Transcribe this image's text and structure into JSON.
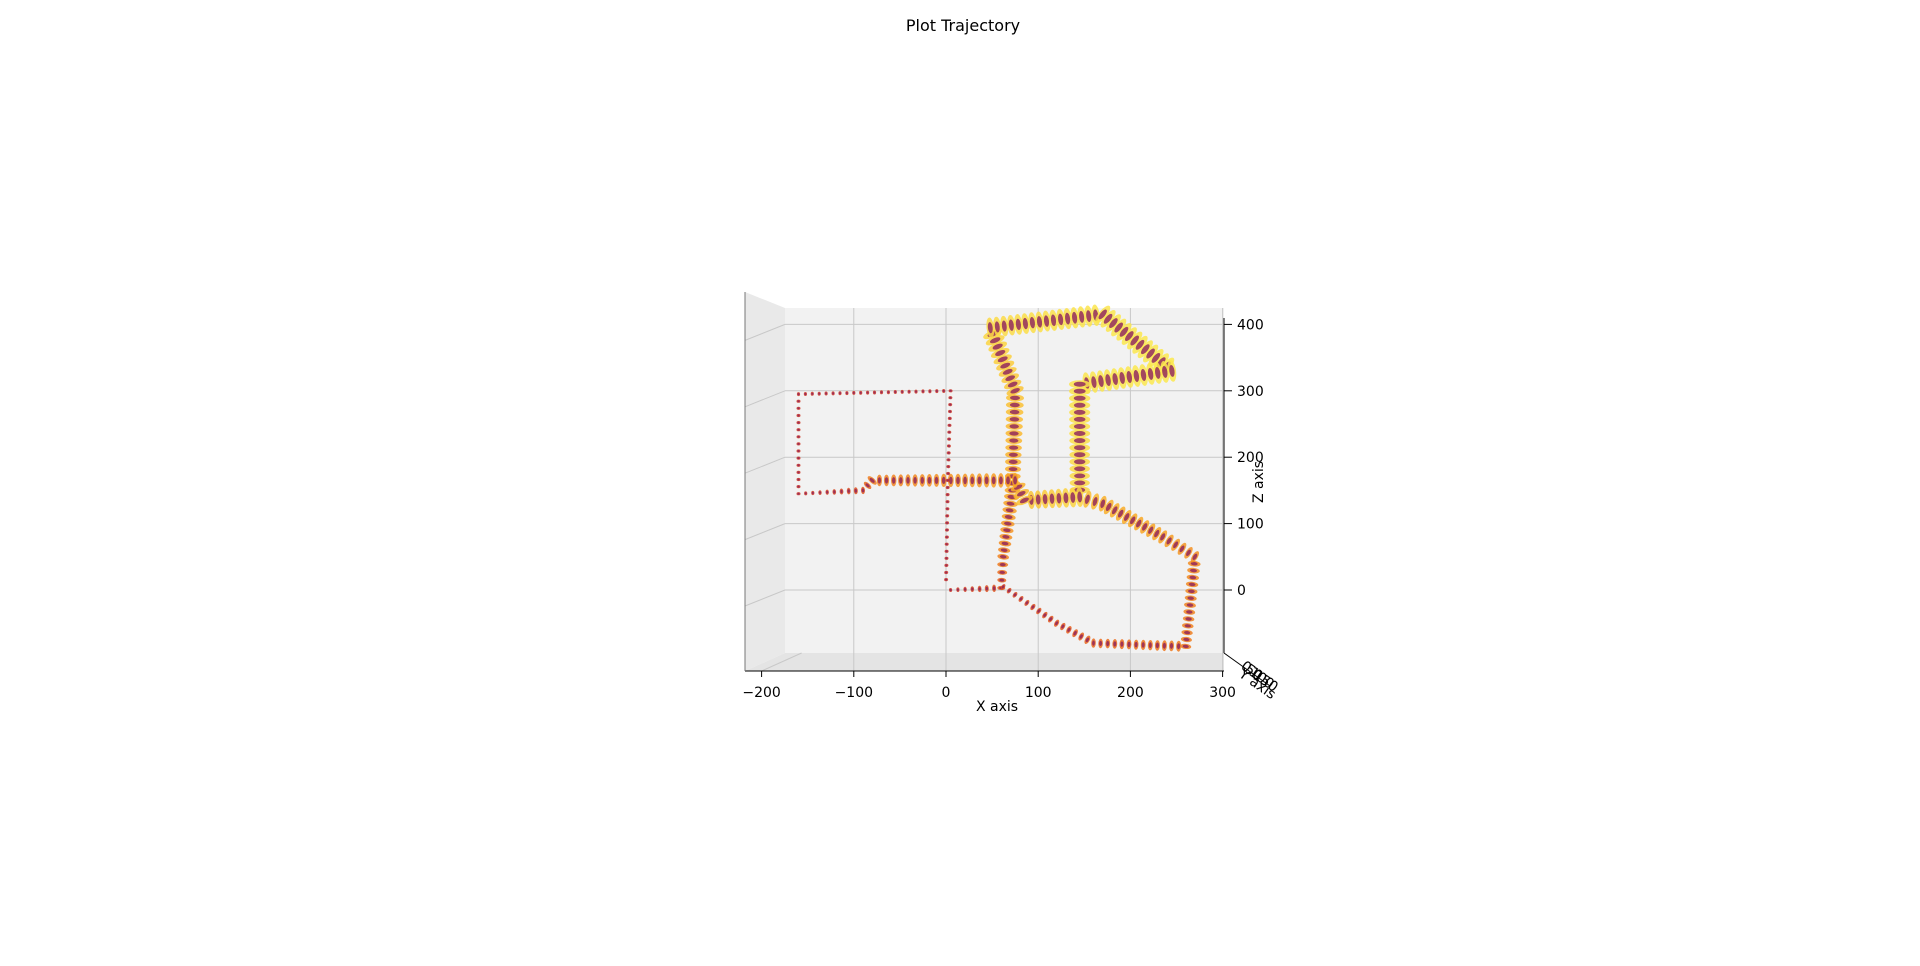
{
  "chart_data": {
    "type": "scatter",
    "title": "Plot Trajectory",
    "xlabel": "X axis",
    "ylabel": "Y axis",
    "zlabel": "Z axis",
    "xlim": [
      -210,
      310
    ],
    "zlim": [
      -95,
      420
    ],
    "x_ticks": [
      "−200",
      "−100",
      "0",
      "100",
      "200",
      "300"
    ],
    "x_tick_values": [
      -200,
      -100,
      0,
      100,
      200,
      300
    ],
    "z_ticks": [
      "0",
      "100",
      "200",
      "300",
      "400"
    ],
    "z_tick_values": [
      0,
      100,
      200,
      300,
      400
    ],
    "y_ticks": [
      "0",
      "50",
      "100",
      "150"
    ],
    "colormap": [
      "#1a0a4a",
      "#7a1d6c",
      "#c0282d",
      "#e8601c",
      "#f9a825",
      "#fce94f"
    ],
    "pane_color": "#f2f2f2",
    "grid": true,
    "series": [
      {
        "points": [
          [
            5,
            0
          ],
          [
            60,
            3
          ],
          [
            62,
            50
          ],
          [
            72,
            150
          ],
          [
            75,
            300
          ],
          [
            48,
            395
          ],
          [
            170,
            415
          ],
          [
            245,
            330
          ],
          [
            145,
            310
          ],
          [
            145,
            140
          ],
          [
            85,
            135
          ],
          [
            75,
            165
          ],
          [
            -80,
            165
          ],
          [
            -90,
            150
          ],
          [
            -160,
            145
          ],
          [
            -160,
            295
          ],
          [
            5,
            300
          ],
          [
            2,
            165
          ],
          [
            0,
            5
          ]
        ]
      },
      {
        "points": [
          [
            62,
            5
          ],
          [
            120,
            -50
          ],
          [
            160,
            -80
          ],
          [
            260,
            -85
          ],
          [
            270,
            50
          ],
          [
            235,
            80
          ],
          [
            170,
            130
          ],
          [
            145,
            140
          ]
        ]
      }
    ]
  }
}
